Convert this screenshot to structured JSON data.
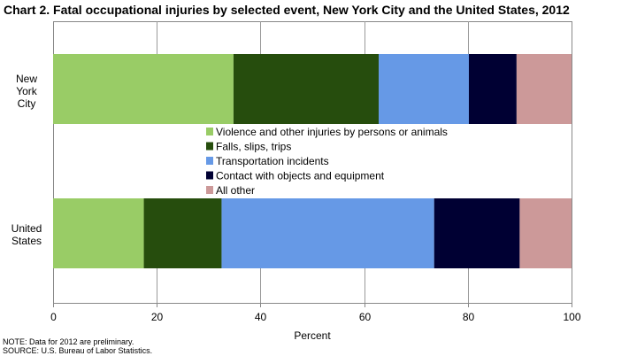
{
  "chart_data": {
    "type": "bar",
    "orientation": "horizontal",
    "stacked": true,
    "title": "Chart 2. Fatal occupational injuries by selected event, New York City and the United States, 2012",
    "categories": [
      "New York City",
      "United States"
    ],
    "category_lines": [
      [
        "New",
        "York",
        "City"
      ],
      [
        "United",
        "States"
      ]
    ],
    "xlabel": "Percent",
    "ylabel": "",
    "xlim": [
      0,
      100
    ],
    "xticks": [
      0,
      20,
      40,
      60,
      80,
      100
    ],
    "grid": "vertical gridlines",
    "legend_position": "center",
    "series": [
      {
        "name": "Violence and other injuries by persons or animals",
        "color": "#99cc66",
        "values": [
          34.8,
          17.5
        ]
      },
      {
        "name": "Falls, slips, trips",
        "color": "#264d0d",
        "values": [
          28.0,
          15.0
        ]
      },
      {
        "name": "Transportation incidents",
        "color": "#6699e6",
        "values": [
          17.4,
          41.0
        ]
      },
      {
        "name": "Contact with objects and equipment",
        "color": "#000033",
        "values": [
          9.2,
          16.5
        ]
      },
      {
        "name": "All other",
        "color": "#cc9999",
        "values": [
          10.6,
          10.0
        ]
      }
    ]
  },
  "notes": {
    "note": "NOTE: Data for 2012 are preliminary.",
    "source": "SOURCE: U.S. Bureau of Labor Statistics."
  }
}
